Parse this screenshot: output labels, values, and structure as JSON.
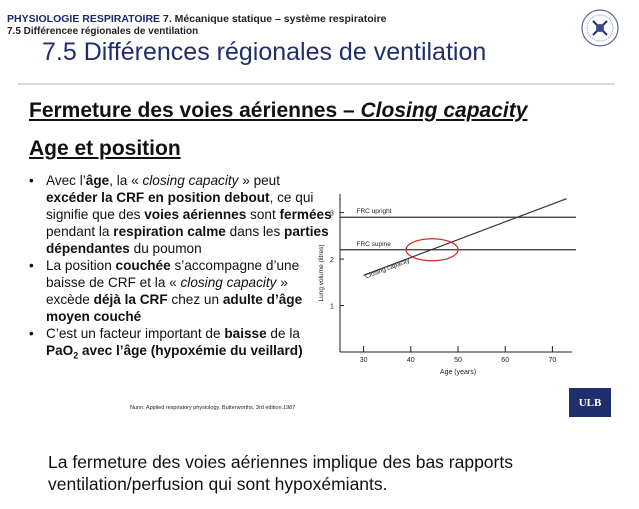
{
  "header": {
    "category": "PHYSIOLOGIE RESPIRATOIRE",
    "chapter": "7. Mécanique statique – système respiratoire",
    "section": "7.5 Différencee régionales de ventilation"
  },
  "slide": {
    "title": "7.5 Différences régionales de ventilation",
    "heading": "Fermeture des voies aériennes – ",
    "heading_italic": "Closing capacity",
    "subheading": "Age et position",
    "bullets": [
      [
        {
          "t": "Avec l’"
        },
        {
          "t": "âge",
          "b": true
        },
        {
          "t": ", la « "
        },
        {
          "t": "closing capacity",
          "i": true
        },
        {
          "t": " » peut "
        },
        {
          "t": "excéder la CRF en position debout",
          "b": true
        },
        {
          "t": ", ce qui signifie que des "
        },
        {
          "t": "voies aériennes",
          "b": true
        },
        {
          "t": " sont "
        },
        {
          "t": "fermées",
          "b": true
        },
        {
          "t": " pendant la "
        },
        {
          "t": "respiration calme",
          "b": true
        },
        {
          "t": " dans les "
        },
        {
          "t": "parties dépendantes",
          "b": true
        },
        {
          "t": " du poumon"
        }
      ],
      [
        {
          "t": "La position "
        },
        {
          "t": "couchée",
          "b": true
        },
        {
          "t": " s’accompagne d’une baisse de CRF et la « "
        },
        {
          "t": "closing capacity",
          "i": true
        },
        {
          "t": " » excède "
        },
        {
          "t": "déjà la CRF",
          "b": true
        },
        {
          "t": " chez un "
        },
        {
          "t": "adulte d’âge moyen couché",
          "b": true
        }
      ],
      [
        {
          "t": "C’est un facteur important de "
        },
        {
          "t": "baisse",
          "b": true
        },
        {
          "t": " de la "
        },
        {
          "t": "PaO",
          "b": true
        },
        {
          "t": "2",
          "b": true,
          "sub": true
        },
        {
          "t": " avec l’âge (hypoxémie du veillard)",
          "b": true
        }
      ]
    ],
    "citation": "Nunn. Applied respiratory physiology. Butterworths, 3rd edition.1987",
    "logo_text": "ULB"
  },
  "caption": "La fermeture des voies aériennes implique des bas rapports ventilation/perfusion qui sont hypoxémiants.",
  "chart_data": {
    "type": "line",
    "xlabel": "Age (years)",
    "ylabel": "Lung volume (litres)",
    "xlim": [
      25,
      75
    ],
    "ylim": [
      0,
      3.4
    ],
    "x_ticks": [
      30,
      40,
      50,
      60,
      70
    ],
    "y_ticks": [
      1,
      2,
      3
    ],
    "series": [
      {
        "name": "FRC upright",
        "x": [
          25,
          75
        ],
        "y": [
          2.9,
          2.9
        ]
      },
      {
        "name": "FRC supine",
        "x": [
          25,
          75
        ],
        "y": [
          2.2,
          2.2
        ]
      },
      {
        "name": "Closing capacity",
        "x": [
          30,
          73
        ],
        "y": [
          1.65,
          3.3
        ]
      }
    ],
    "annotation": "red ellipse around FRC supine / closing capacity crossing near age 44"
  }
}
